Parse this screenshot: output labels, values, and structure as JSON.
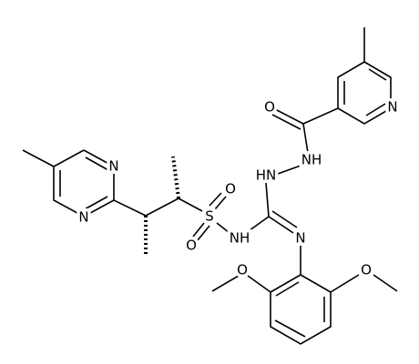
{
  "atoms": [
    "O",
    "N",
    "NH",
    "HN",
    "S",
    "O",
    "O",
    "NH",
    "N",
    "N",
    "N",
    "O",
    "O"
  ]
}
